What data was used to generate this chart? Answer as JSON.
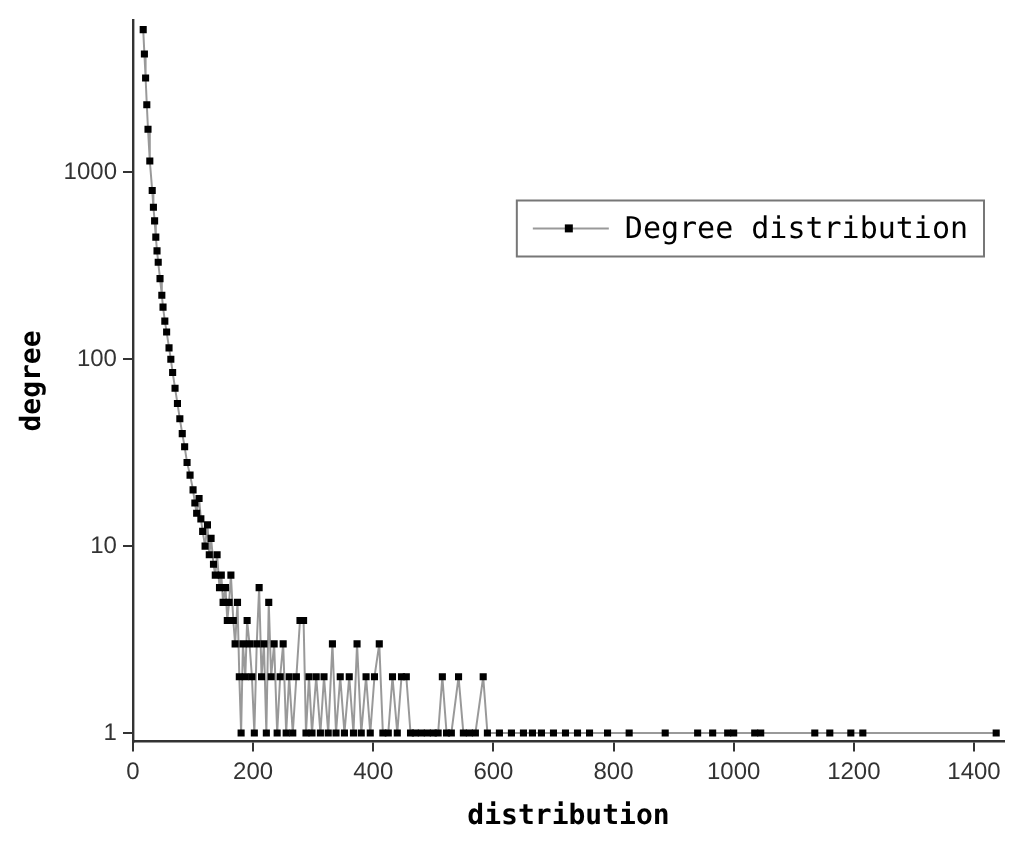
{
  "chart_data": {
    "type": "line",
    "xlabel": "distribution",
    "ylabel": "degree",
    "log": "y",
    "xlim": [
      0,
      1450
    ],
    "xticks": [
      0,
      200,
      400,
      600,
      800,
      1000,
      1200,
      1400
    ],
    "ylim": [
      0.9,
      6500
    ],
    "yticks": [
      1,
      10,
      100,
      1000
    ],
    "grid": false,
    "legend": "top right",
    "marker": "square",
    "line_style": "solid",
    "series": [
      {
        "name": "Degree distribution",
        "color": "#000000",
        "x": [
          17,
          19,
          21,
          23,
          25,
          28,
          32,
          34,
          36,
          38,
          40,
          42,
          45,
          48,
          50,
          53,
          56,
          60,
          63,
          66,
          70,
          74,
          78,
          82,
          86,
          90,
          95,
          100,
          103,
          106,
          110,
          113,
          116,
          120,
          124,
          127,
          130,
          134,
          137,
          140,
          144,
          147,
          150,
          154,
          157,
          160,
          163,
          167,
          170,
          174,
          177,
          180,
          183,
          187,
          190,
          194,
          198,
          202,
          206,
          210,
          214,
          218,
          222,
          226,
          230,
          235,
          240,
          245,
          250,
          255,
          260,
          266,
          272,
          278,
          284,
          288,
          293,
          298,
          305,
          312,
          318,
          325,
          332,
          338,
          345,
          352,
          360,
          367,
          373,
          380,
          388,
          395,
          402,
          410,
          416,
          425,
          432,
          440,
          447,
          455,
          462,
          470,
          480,
          490,
          500,
          508,
          515,
          522,
          530,
          542,
          550,
          560,
          570,
          583,
          590,
          610,
          630,
          650,
          665,
          680,
          700,
          720,
          740,
          760,
          790,
          826,
          886,
          940,
          965,
          990,
          1000,
          1035,
          1045,
          1135,
          1160,
          1195,
          1215,
          1437
        ],
        "values": [
          5800,
          4300,
          3200,
          2300,
          1700,
          1150,
          800,
          650,
          550,
          450,
          380,
          330,
          270,
          220,
          190,
          160,
          140,
          115,
          100,
          85,
          70,
          58,
          48,
          40,
          34,
          28,
          24,
          20,
          17,
          15,
          18,
          14,
          12,
          10,
          13,
          9,
          11,
          8,
          7,
          9,
          6,
          7,
          5,
          6,
          4,
          5,
          7,
          4,
          3,
          5,
          2,
          1,
          3,
          2,
          4,
          3,
          2,
          1,
          3,
          6,
          2,
          3,
          1,
          5,
          2,
          3,
          1,
          2,
          3,
          1,
          2,
          1,
          2,
          4,
          4,
          1,
          2,
          1,
          2,
          1,
          2,
          1,
          3,
          1,
          2,
          1,
          2,
          1,
          3,
          1,
          2,
          1,
          2,
          3,
          1,
          1,
          2,
          1,
          2,
          2,
          1,
          1,
          1,
          1,
          1,
          1,
          2,
          1,
          1,
          2,
          1,
          1,
          1,
          2,
          1,
          1,
          1,
          1,
          1,
          1,
          1,
          1,
          1,
          1,
          1,
          1,
          1,
          1,
          1,
          1,
          1,
          1,
          1,
          1,
          1,
          1,
          1,
          1
        ]
      }
    ]
  }
}
